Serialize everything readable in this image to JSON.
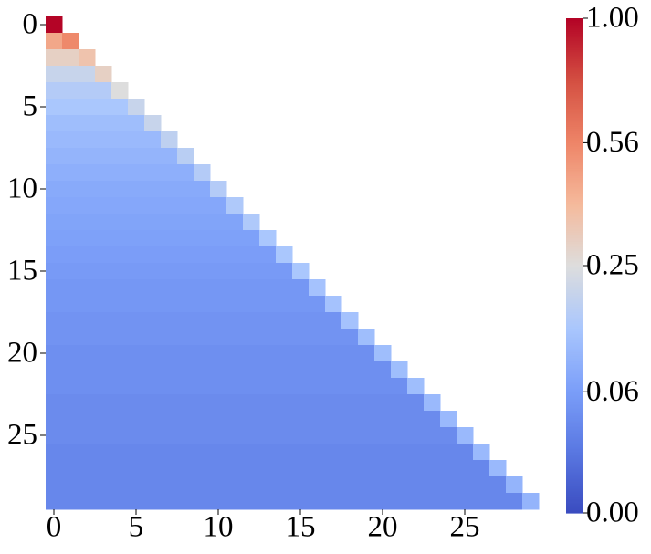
{
  "chart_data": {
    "type": "heatmap",
    "colormap": "coolwarm",
    "color_scale": "sqrt",
    "clim": [
      0,
      1
    ],
    "colorbar_ticks": [
      {
        "value": 0,
        "label": "0.00"
      },
      0.06,
      0.25,
      0.56,
      {
        "value": 1,
        "label": "1.00"
      }
    ],
    "xticks": [
      0,
      5,
      10,
      15,
      20,
      25
    ],
    "yticks": [
      0,
      5,
      10,
      15,
      20,
      25
    ],
    "values": [
      [
        1.0
      ],
      [
        0.45,
        0.55
      ],
      [
        0.3,
        0.3,
        0.35
      ],
      [
        0.2,
        0.2,
        0.2,
        0.3
      ],
      [
        0.16,
        0.16,
        0.16,
        0.16,
        0.25
      ],
      [
        0.14,
        0.14,
        0.14,
        0.14,
        0.14,
        0.2
      ],
      [
        0.12,
        0.12,
        0.12,
        0.12,
        0.12,
        0.12,
        0.2
      ],
      [
        0.11,
        0.11,
        0.11,
        0.11,
        0.11,
        0.11,
        0.11,
        0.18
      ],
      [
        0.1,
        0.1,
        0.1,
        0.1,
        0.1,
        0.1,
        0.1,
        0.1,
        0.17
      ],
      [
        0.09,
        0.09,
        0.09,
        0.09,
        0.09,
        0.09,
        0.09,
        0.09,
        0.09,
        0.16
      ],
      [
        0.08,
        0.08,
        0.08,
        0.08,
        0.08,
        0.08,
        0.08,
        0.08,
        0.08,
        0.08,
        0.16
      ],
      [
        0.075,
        0.075,
        0.075,
        0.075,
        0.075,
        0.075,
        0.075,
        0.075,
        0.075,
        0.075,
        0.075,
        0.15
      ],
      [
        0.07,
        0.07,
        0.07,
        0.07,
        0.07,
        0.07,
        0.07,
        0.07,
        0.07,
        0.07,
        0.07,
        0.07,
        0.15
      ],
      [
        0.065,
        0.065,
        0.065,
        0.065,
        0.065,
        0.065,
        0.065,
        0.065,
        0.065,
        0.065,
        0.065,
        0.065,
        0.065,
        0.14
      ],
      [
        0.06,
        0.06,
        0.06,
        0.06,
        0.06,
        0.06,
        0.06,
        0.06,
        0.06,
        0.06,
        0.06,
        0.06,
        0.06,
        0.06,
        0.14
      ],
      [
        0.055,
        0.055,
        0.055,
        0.055,
        0.055,
        0.055,
        0.055,
        0.055,
        0.055,
        0.055,
        0.055,
        0.055,
        0.055,
        0.055,
        0.055,
        0.14
      ],
      [
        0.05,
        0.05,
        0.05,
        0.05,
        0.05,
        0.05,
        0.05,
        0.05,
        0.05,
        0.05,
        0.05,
        0.05,
        0.05,
        0.05,
        0.05,
        0.05,
        0.13
      ],
      [
        0.05,
        0.05,
        0.05,
        0.05,
        0.05,
        0.05,
        0.05,
        0.05,
        0.05,
        0.05,
        0.05,
        0.05,
        0.05,
        0.05,
        0.05,
        0.05,
        0.05,
        0.13
      ],
      [
        0.045,
        0.045,
        0.045,
        0.045,
        0.045,
        0.045,
        0.045,
        0.045,
        0.045,
        0.045,
        0.045,
        0.045,
        0.045,
        0.045,
        0.045,
        0.045,
        0.045,
        0.045,
        0.13
      ],
      [
        0.045,
        0.045,
        0.045,
        0.045,
        0.045,
        0.045,
        0.045,
        0.045,
        0.045,
        0.045,
        0.045,
        0.045,
        0.045,
        0.045,
        0.045,
        0.045,
        0.045,
        0.045,
        0.045,
        0.12
      ],
      [
        0.04,
        0.04,
        0.04,
        0.04,
        0.04,
        0.04,
        0.04,
        0.04,
        0.04,
        0.04,
        0.04,
        0.04,
        0.04,
        0.04,
        0.04,
        0.04,
        0.04,
        0.04,
        0.04,
        0.04,
        0.12
      ],
      [
        0.04,
        0.04,
        0.04,
        0.04,
        0.04,
        0.04,
        0.04,
        0.04,
        0.04,
        0.04,
        0.04,
        0.04,
        0.04,
        0.04,
        0.04,
        0.04,
        0.04,
        0.04,
        0.04,
        0.04,
        0.04,
        0.12
      ],
      [
        0.04,
        0.04,
        0.04,
        0.04,
        0.04,
        0.04,
        0.04,
        0.04,
        0.04,
        0.04,
        0.04,
        0.04,
        0.04,
        0.04,
        0.04,
        0.04,
        0.04,
        0.04,
        0.04,
        0.04,
        0.04,
        0.04,
        0.12
      ],
      [
        0.035,
        0.035,
        0.035,
        0.035,
        0.035,
        0.035,
        0.035,
        0.035,
        0.035,
        0.035,
        0.035,
        0.035,
        0.035,
        0.035,
        0.035,
        0.035,
        0.035,
        0.035,
        0.035,
        0.035,
        0.035,
        0.035,
        0.035,
        0.11
      ],
      [
        0.035,
        0.035,
        0.035,
        0.035,
        0.035,
        0.035,
        0.035,
        0.035,
        0.035,
        0.035,
        0.035,
        0.035,
        0.035,
        0.035,
        0.035,
        0.035,
        0.035,
        0.035,
        0.035,
        0.035,
        0.035,
        0.035,
        0.035,
        0.035,
        0.11
      ],
      [
        0.035,
        0.035,
        0.035,
        0.035,
        0.035,
        0.035,
        0.035,
        0.035,
        0.035,
        0.035,
        0.035,
        0.035,
        0.035,
        0.035,
        0.035,
        0.035,
        0.035,
        0.035,
        0.035,
        0.035,
        0.035,
        0.035,
        0.035,
        0.035,
        0.035,
        0.11
      ],
      [
        0.03,
        0.03,
        0.03,
        0.03,
        0.03,
        0.03,
        0.03,
        0.03,
        0.03,
        0.03,
        0.03,
        0.03,
        0.03,
        0.03,
        0.03,
        0.03,
        0.03,
        0.03,
        0.03,
        0.03,
        0.03,
        0.03,
        0.03,
        0.03,
        0.03,
        0.03,
        0.11
      ],
      [
        0.03,
        0.03,
        0.03,
        0.03,
        0.03,
        0.03,
        0.03,
        0.03,
        0.03,
        0.03,
        0.03,
        0.03,
        0.03,
        0.03,
        0.03,
        0.03,
        0.03,
        0.03,
        0.03,
        0.03,
        0.03,
        0.03,
        0.03,
        0.03,
        0.03,
        0.03,
        0.03,
        0.11
      ],
      [
        0.03,
        0.03,
        0.03,
        0.03,
        0.03,
        0.03,
        0.03,
        0.03,
        0.03,
        0.03,
        0.03,
        0.03,
        0.03,
        0.03,
        0.03,
        0.03,
        0.03,
        0.03,
        0.03,
        0.03,
        0.03,
        0.03,
        0.03,
        0.03,
        0.03,
        0.03,
        0.03,
        0.03,
        0.1
      ],
      [
        0.03,
        0.03,
        0.03,
        0.03,
        0.03,
        0.03,
        0.03,
        0.03,
        0.03,
        0.03,
        0.03,
        0.03,
        0.03,
        0.03,
        0.03,
        0.03,
        0.03,
        0.03,
        0.03,
        0.03,
        0.03,
        0.03,
        0.03,
        0.03,
        0.03,
        0.03,
        0.03,
        0.03,
        0.03,
        0.1
      ]
    ]
  }
}
